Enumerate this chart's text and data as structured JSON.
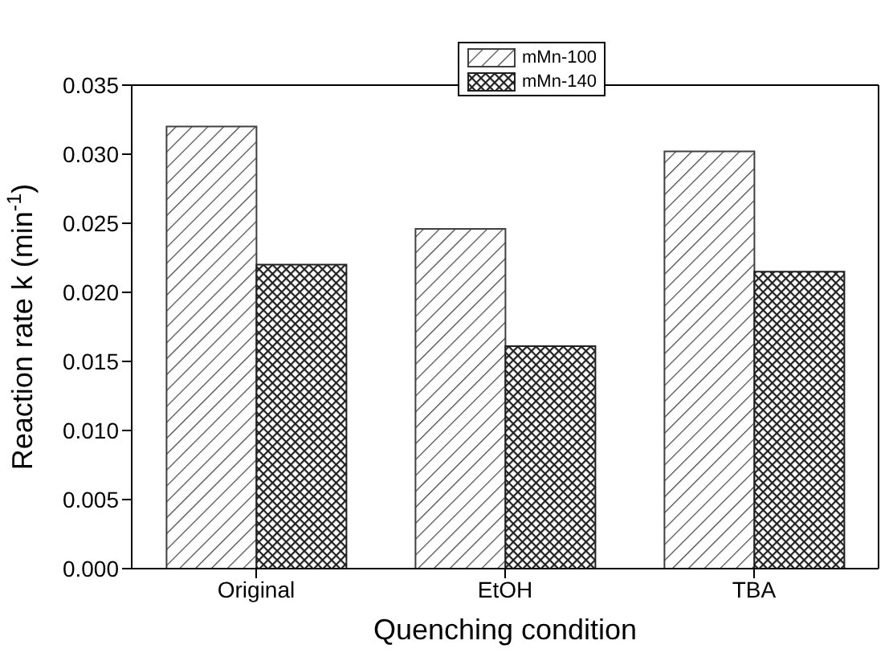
{
  "chart_data": {
    "type": "bar",
    "xlabel": "Quenching condition",
    "ylabel": "Reaction rate k (min$^{-1}$)",
    "categories": [
      "Original",
      "EtOH",
      "TBA"
    ],
    "series": [
      {
        "name": "mMn-100",
        "color": "#404040",
        "values": [
          0.032,
          0.0246,
          0.0302
        ]
      },
      {
        "name": "mMn-140",
        "color": "#202020",
        "values": [
          0.022,
          0.0161,
          0.0215
        ]
      }
    ],
    "ylim": [
      0,
      0.035
    ],
    "yticks": [
      {
        "value": 0,
        "label": "0.000"
      },
      {
        "value": 0.005,
        "label": "0.005"
      },
      {
        "value": 0.01,
        "label": "0.010"
      },
      {
        "value": 0.015,
        "label": "0.015"
      },
      {
        "value": 0.02,
        "label": "0.020"
      },
      {
        "value": 0.025,
        "label": "0.025"
      },
      {
        "value": 0.03,
        "label": "0.030"
      },
      {
        "value": 0.035,
        "label": "0.035"
      }
    ],
    "legend": "top",
    "grid": false
  }
}
